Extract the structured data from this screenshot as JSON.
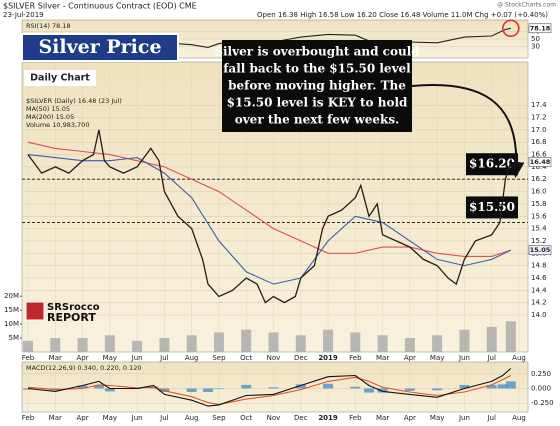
{
  "header": {
    "title": "$SILVER Silver - Continuous Contract (EOD) CME",
    "date": "23-Jul-2019",
    "stats": "Open 16.38 High 16.58 Low 16.20 Close 16.48 Volume 11.0M Chg +0.07 (+0.40%)",
    "site": "@ StockCharts.com"
  },
  "overlay": {
    "title": "Silver Price",
    "subtitle": "Daily Chart",
    "annotation": [
      "Silver is overbought and could",
      "fall back to the $15.50 level",
      "before moving higher.  The",
      "$15.50 level is KEY to hold",
      "over the next few weeks."
    ],
    "logo": [
      "SRSrocco",
      "REPORT"
    ]
  },
  "chart_data": [
    {
      "type": "line",
      "xlim": [
        -0.22,
        18.33
      ],
      "ylim": [
        0,
        100
      ],
      "yticks": [
        30,
        50,
        70
      ],
      "grid": true,
      "series": [
        {
          "name": "RSI(14) 78.18",
          "color": "#222222",
          "x": [
            0,
            1,
            2,
            2.6,
            3,
            4,
            5,
            6,
            6.6,
            7,
            8,
            9,
            10,
            11,
            12,
            12.5,
            13,
            14,
            15,
            16,
            17,
            17.5,
            17.7
          ],
          "values": [
            50,
            45,
            55,
            62,
            50,
            52,
            40,
            35,
            28,
            38,
            45,
            42,
            55,
            62,
            60,
            45,
            45,
            42,
            40,
            55,
            58,
            75,
            78.18
          ]
        }
      ],
      "badges": [
        78.18
      ]
    },
    {
      "type": "line",
      "xlim": [
        -0.22,
        18.33
      ],
      "ylim": [
        13.4,
        18.1
      ],
      "yticks": [
        {
          "value": 14,
          "label": "14.0"
        },
        14.2,
        14.4,
        14.6,
        14.8,
        {
          "value": 15,
          "label": "15.0"
        },
        15.2,
        15.4,
        15.6,
        15.8,
        {
          "value": 16,
          "label": "16.0"
        },
        16.2,
        16.4,
        16.6,
        16.8,
        {
          "value": 17,
          "label": "17.0"
        },
        17.2,
        17.4
      ],
      "y2lim": [
        0,
        104
      ],
      "y2ticks": [
        {
          "value": 5,
          "label": "5M"
        },
        {
          "value": 10,
          "label": "10M"
        },
        {
          "value": 15,
          "label": "15M"
        },
        {
          "value": 20,
          "label": "20M"
        }
      ],
      "grid": true,
      "xticks": [
        {
          "value": 0,
          "label": "Feb"
        },
        {
          "value": 1,
          "label": "Mar"
        },
        {
          "value": 2,
          "label": "Apr"
        },
        {
          "value": 3,
          "label": "May"
        },
        {
          "value": 4,
          "label": "Jun"
        },
        {
          "value": 5,
          "label": "Jul"
        },
        {
          "value": 6,
          "label": "Aug"
        },
        {
          "value": 7,
          "label": "Sep"
        },
        {
          "value": 8,
          "label": "Oct"
        },
        {
          "value": 9,
          "label": "Nov"
        },
        {
          "value": 10,
          "label": "Dec"
        },
        {
          "value": 11,
          "label": "2019"
        },
        {
          "value": 12,
          "label": "Feb"
        },
        {
          "value": 13,
          "label": "Mar"
        },
        {
          "value": 14,
          "label": "Apr"
        },
        {
          "value": 15,
          "label": "May"
        },
        {
          "value": 16,
          "label": "Jun"
        },
        {
          "value": 17,
          "label": "Jul"
        },
        {
          "value": 18,
          "label": "Aug"
        }
      ],
      "series": [
        {
          "name": "Volume 10,983,700",
          "color": "#a9a9a9",
          "type": "bar",
          "axis": "y2",
          "x": [
            0,
            1,
            2,
            3,
            4,
            5,
            6,
            7,
            8,
            9,
            10,
            11,
            12,
            13,
            14,
            15,
            16,
            17,
            17.7
          ],
          "values": [
            4,
            5,
            5,
            6,
            4,
            5,
            6,
            7,
            8,
            7,
            6,
            8,
            7,
            6,
            5,
            6,
            8,
            9,
            11
          ]
        },
        {
          "name": "MA(200) 15.05",
          "color": "#d9534f",
          "x": [
            0,
            1,
            2,
            3,
            4,
            5,
            6,
            7,
            8,
            9,
            10,
            11,
            12,
            13,
            14,
            15,
            16,
            17,
            17.7
          ],
          "values": [
            16.8,
            16.7,
            16.65,
            16.6,
            16.5,
            16.4,
            16.2,
            16.0,
            15.7,
            15.4,
            15.2,
            15.0,
            15.0,
            15.1,
            15.1,
            15.0,
            14.95,
            14.95,
            15.05
          ]
        },
        {
          "name": "MA(50) 15.05",
          "color": "#3b5bb5",
          "x": [
            0,
            1,
            2,
            3,
            4,
            5,
            6,
            7,
            8,
            9,
            10,
            11,
            12,
            13,
            14,
            15,
            16,
            17,
            17.7
          ],
          "values": [
            16.6,
            16.55,
            16.5,
            16.5,
            16.55,
            16.3,
            15.9,
            15.2,
            14.7,
            14.5,
            14.6,
            15.2,
            15.6,
            15.5,
            15.2,
            14.9,
            14.8,
            14.9,
            15.05
          ]
        },
        {
          "name": "$SILVER (Daily) 16.48 (23 Jul)",
          "color": "#2a1a1a",
          "x": [
            0,
            0.5,
            1,
            1.5,
            2,
            2.4,
            2.6,
            2.8,
            3,
            3.5,
            4,
            4.5,
            4.8,
            5,
            5.5,
            6,
            6.4,
            6.6,
            7,
            7.5,
            8,
            8.4,
            8.7,
            9,
            9.4,
            9.8,
            10,
            10.5,
            10.8,
            11,
            11.5,
            12,
            12.2,
            12.5,
            12.8,
            13,
            13.5,
            14,
            14.5,
            15,
            15.4,
            15.7,
            16,
            16.4,
            17,
            17.3,
            17.5,
            17.7
          ],
          "values": [
            16.6,
            16.3,
            16.4,
            16.3,
            16.5,
            16.6,
            17.0,
            16.5,
            16.4,
            16.3,
            16.4,
            16.7,
            16.5,
            16.0,
            15.6,
            15.4,
            14.9,
            14.5,
            14.3,
            14.4,
            14.6,
            14.5,
            14.2,
            14.3,
            14.2,
            14.3,
            14.6,
            14.8,
            15.4,
            15.6,
            15.7,
            15.9,
            16.1,
            15.6,
            15.8,
            15.3,
            15.2,
            15.1,
            14.9,
            14.8,
            14.6,
            14.5,
            14.9,
            15.2,
            15.3,
            15.5,
            16.2,
            16.48
          ]
        }
      ],
      "levels": [
        {
          "value": 16.2,
          "label": "$16.20"
        },
        {
          "value": 15.5,
          "label": "$15.50"
        }
      ],
      "badges": [
        16.48,
        15.05
      ]
    },
    {
      "type": "line",
      "xlim": [
        -0.22,
        18.33
      ],
      "ylim": [
        -0.4,
        0.45
      ],
      "yticks": [
        {
          "value": -0.25,
          "label": "-0.250"
        },
        {
          "value": 0,
          "label": "0.000"
        },
        {
          "value": 0.25,
          "label": "0.250"
        }
      ],
      "grid": true,
      "xticks": [
        {
          "value": 0,
          "label": "Feb"
        },
        {
          "value": 1,
          "label": "Mar"
        },
        {
          "value": 2,
          "label": "Apr"
        },
        {
          "value": 3,
          "label": "May"
        },
        {
          "value": 4,
          "label": "Jun"
        },
        {
          "value": 5,
          "label": "Jul"
        },
        {
          "value": 6,
          "label": "Aug"
        },
        {
          "value": 7,
          "label": "Sep"
        },
        {
          "value": 8,
          "label": "Oct"
        },
        {
          "value": 9,
          "label": "Nov"
        },
        {
          "value": 10,
          "label": "Dec"
        },
        {
          "value": 11,
          "label": "2019"
        },
        {
          "value": 12,
          "label": "Feb"
        },
        {
          "value": 13,
          "label": "Mar"
        },
        {
          "value": 14,
          "label": "Apr"
        },
        {
          "value": 15,
          "label": "May"
        },
        {
          "value": 16,
          "label": "Jun"
        },
        {
          "value": 17,
          "label": "Jul"
        },
        {
          "value": 18,
          "label": "Aug"
        }
      ],
      "series": [
        {
          "color": "#4a90c8",
          "type": "bar",
          "x": [
            0,
            1,
            2,
            2.6,
            3,
            4,
            4.6,
            5,
            6,
            6.6,
            7,
            8,
            9,
            10,
            11,
            12,
            12.5,
            13,
            14,
            15,
            16,
            17,
            17.4,
            17.7
          ],
          "values": [
            -0.02,
            -0.03,
            0.05,
            0.06,
            -0.05,
            -0.01,
            0.03,
            -0.06,
            -0.06,
            -0.06,
            -0.01,
            0.06,
            0.02,
            0.07,
            0.08,
            0.03,
            -0.07,
            -0.07,
            -0.04,
            -0.03,
            0.06,
            0.06,
            0.07,
            0.12
          ]
        },
        {
          "color": "#e0542a",
          "x": [
            0,
            1,
            2,
            2.6,
            3,
            4,
            4.6,
            5,
            6,
            6.6,
            7,
            8,
            9,
            10,
            11,
            12,
            12.5,
            13,
            14,
            15,
            16,
            17,
            17.4,
            17.7
          ],
          "values": [
            0.02,
            -0.02,
            0.0,
            0.06,
            0.05,
            0.01,
            0.02,
            -0.04,
            -0.14,
            -0.24,
            -0.27,
            -0.18,
            -0.12,
            -0.02,
            0.12,
            0.19,
            0.12,
            0.02,
            -0.06,
            -0.12,
            -0.06,
            0.06,
            0.15,
            0.22
          ]
        },
        {
          "name": "MACD(12,26,9) 0.340, 0.220, 0.120",
          "color": "#111111",
          "x": [
            0,
            1,
            2,
            2.6,
            3,
            4,
            4.6,
            5,
            6,
            6.6,
            7,
            8,
            9,
            10,
            11,
            12,
            12.5,
            13,
            14,
            15,
            16,
            17,
            17.4,
            17.7
          ],
          "values": [
            0.0,
            -0.05,
            0.05,
            0.12,
            0.0,
            0.0,
            0.05,
            -0.1,
            -0.2,
            -0.3,
            -0.28,
            -0.12,
            -0.1,
            0.05,
            0.2,
            0.22,
            0.05,
            -0.05,
            -0.1,
            -0.15,
            0.0,
            0.12,
            0.22,
            0.34
          ]
        }
      ]
    }
  ]
}
